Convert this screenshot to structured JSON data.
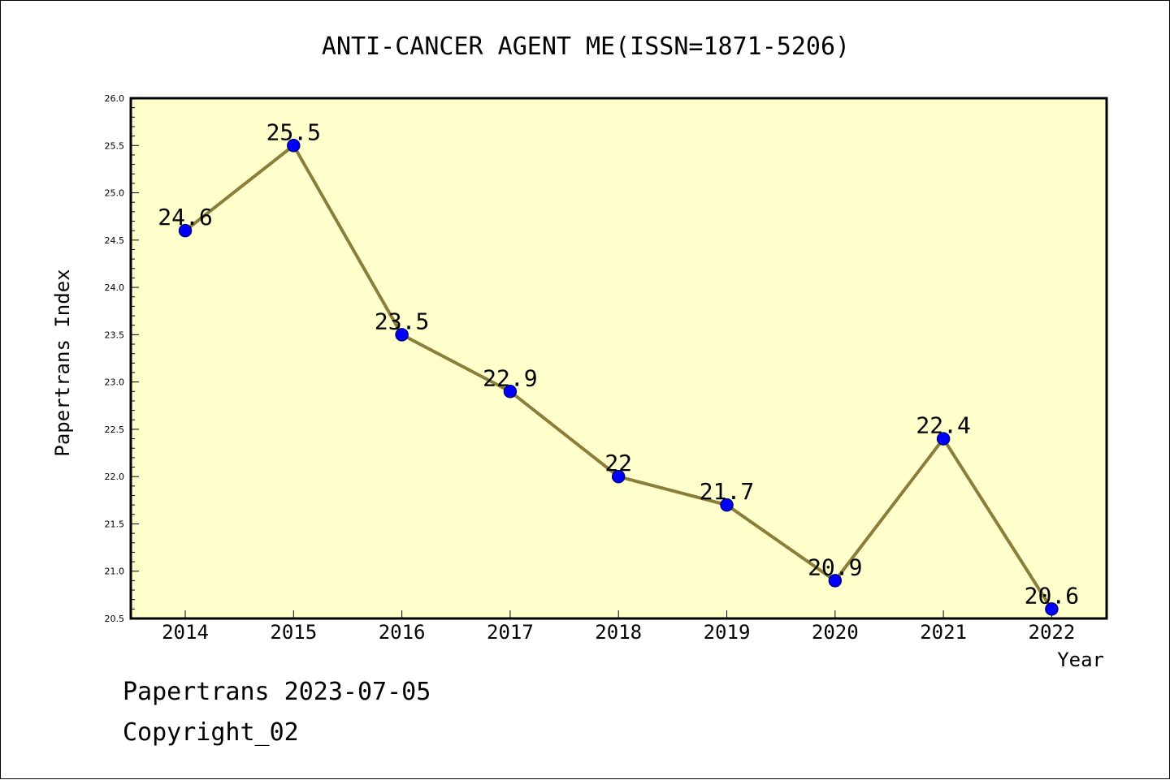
{
  "chart_data": {
    "type": "line",
    "title": "ANTI-CANCER AGENT ME(ISSN=1871-5206)",
    "xlabel": "Year",
    "ylabel": "Papertrans Index",
    "categories": [
      "2014",
      "2015",
      "2016",
      "2017",
      "2018",
      "2019",
      "2020",
      "2021",
      "2022"
    ],
    "values": [
      24.6,
      25.5,
      23.5,
      22.9,
      22,
      21.7,
      20.9,
      22.4,
      20.6
    ],
    "data_labels": [
      "24.6",
      "25.5",
      "23.5",
      "22.9",
      "22",
      "21.7",
      "20.9",
      "22.4",
      "20.6"
    ],
    "ylim": [
      20.5,
      26.0
    ],
    "yticks": [
      "20.5",
      "21.0",
      "21.5",
      "22.0",
      "22.5",
      "23.0",
      "23.5",
      "24.0",
      "24.5",
      "25.0",
      "25.5",
      "26.0"
    ],
    "grid": false,
    "legend": "none",
    "colors": {
      "plot_background": "#ffffcc",
      "line": "#8b7d3a",
      "marker_fill": "#0000ff",
      "marker_edge": "#000080"
    }
  },
  "footer": {
    "line1": "Papertrans 2023-07-05",
    "line2": "Copyright_02"
  }
}
